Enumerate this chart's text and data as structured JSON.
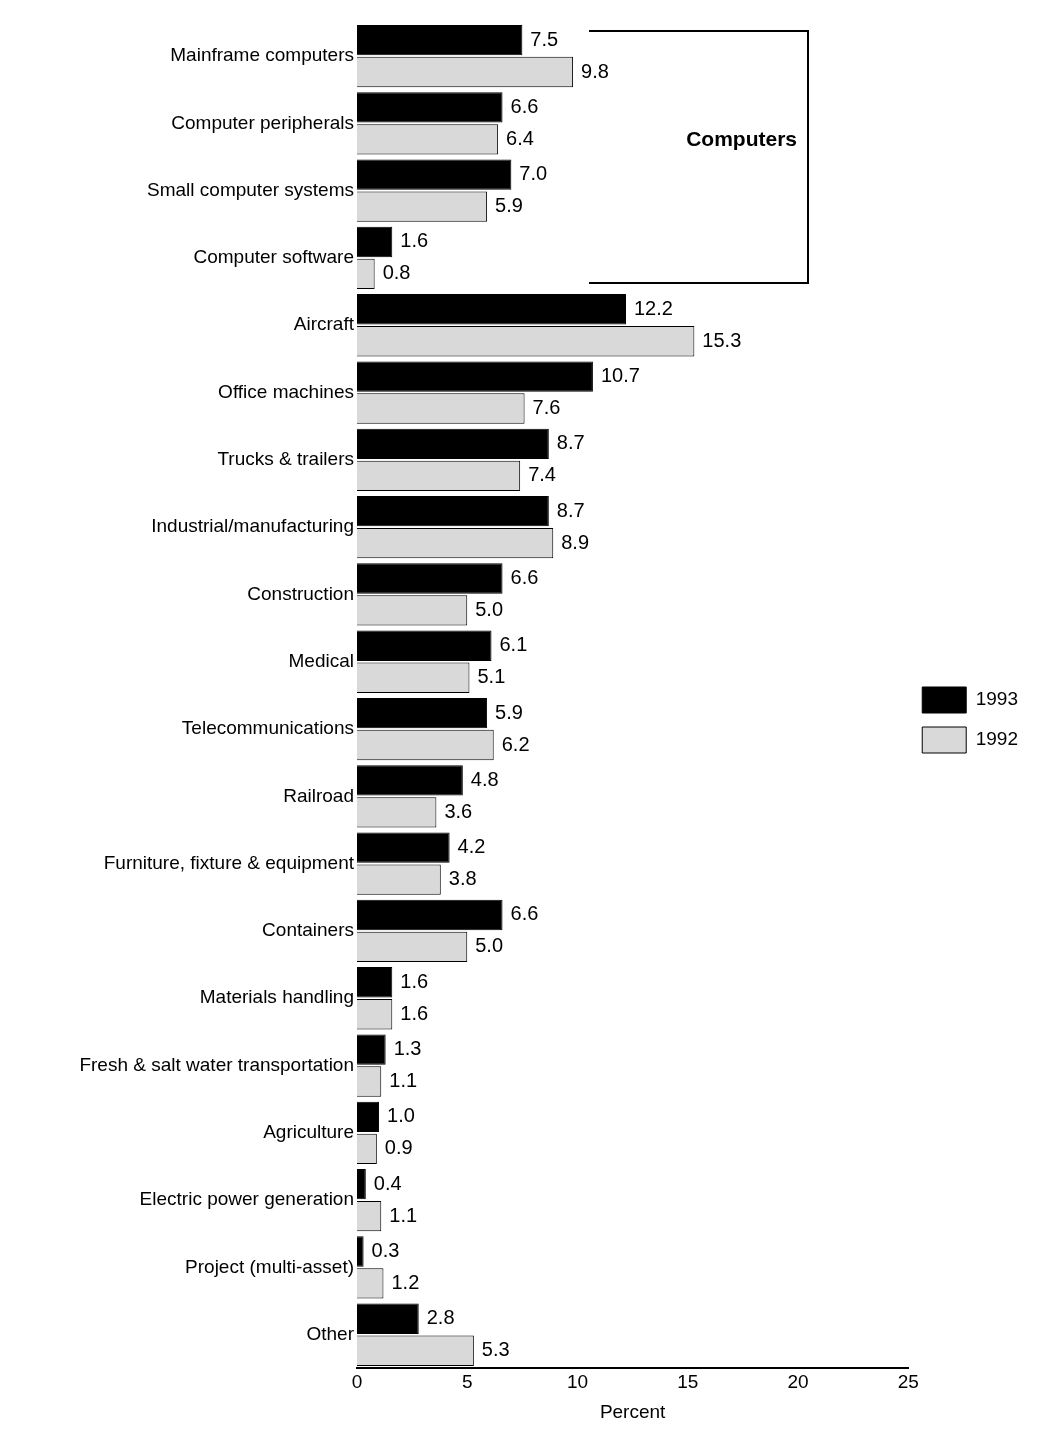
{
  "chart_data": {
    "type": "bar",
    "orientation": "horizontal",
    "xlabel": "Percent",
    "categories": [
      "Mainframe computers",
      "Computer peripherals",
      "Small computer systems",
      "Computer software",
      "Aircraft",
      "Office machines",
      "Trucks & trailers",
      "Industrial/manufacturing",
      "Construction",
      "Medical",
      "Telecommunications",
      "Railroad",
      "Furniture, fixture & equipment",
      "Containers",
      "Materials handling",
      "Fresh & salt water transportation",
      "Agriculture",
      "Electric power generation",
      "Project (multi-asset)",
      "Other"
    ],
    "series": [
      {
        "name": "1993",
        "color": "#000000",
        "values": [
          7.5,
          6.6,
          7.0,
          1.6,
          12.2,
          10.7,
          8.7,
          8.7,
          6.6,
          6.1,
          5.9,
          4.8,
          4.2,
          6.6,
          1.6,
          1.3,
          1.0,
          0.4,
          0.3,
          2.8
        ],
        "value_labels": [
          "7.5",
          "6.6",
          "7.0",
          "1.6",
          "12.2",
          "10.7",
          "8.7",
          "8.7",
          "6.6",
          "6.1",
          "5.9",
          "4.8",
          "4.2",
          "6.6",
          "1.6",
          "1.3",
          "1.0",
          "0.4",
          "0.3",
          "2.8"
        ]
      },
      {
        "name": "1992",
        "color": "#d9d9d9",
        "values": [
          9.8,
          6.4,
          5.9,
          0.8,
          15.3,
          7.6,
          7.4,
          8.9,
          5.0,
          5.1,
          6.2,
          3.6,
          3.8,
          5.0,
          1.6,
          1.1,
          0.9,
          1.1,
          1.2,
          5.3
        ],
        "value_labels": [
          "9.8",
          "6.4",
          "5.9",
          "0.8",
          "15.3",
          "7.6",
          "7.4",
          "8.9",
          "5.0",
          "5.1",
          "6.2",
          "3.6",
          "3.8",
          "5.0",
          "1.6",
          "1.1",
          "0.9",
          "1.1",
          "1.2",
          "5.3"
        ]
      }
    ],
    "xlim": [
      0,
      25
    ],
    "xticks": [
      0,
      5,
      10,
      15,
      20,
      25
    ],
    "legend": "right",
    "grid": false,
    "annotations": [
      "Computers"
    ]
  }
}
